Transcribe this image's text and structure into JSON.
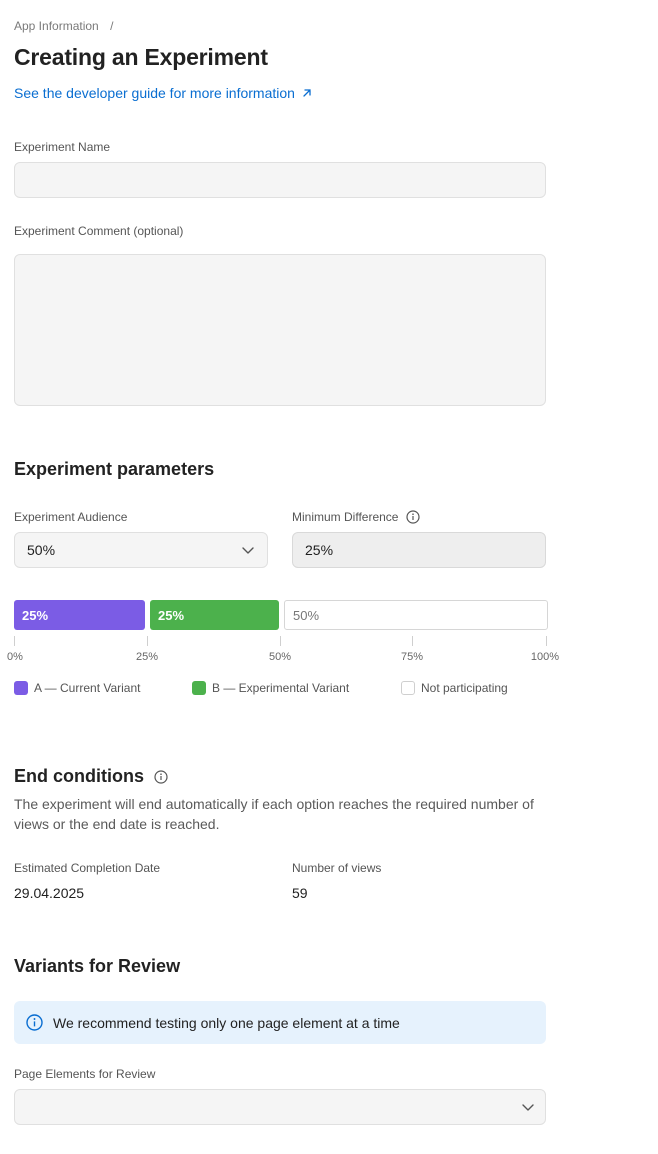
{
  "breadcrumb": {
    "item": "App Information",
    "separator": "/"
  },
  "page_title": "Creating an Experiment",
  "guide_link": {
    "label": "See the developer guide for more information"
  },
  "form": {
    "name_label": "Experiment Name",
    "name_value": "",
    "comment_label": "Experiment Comment (optional)",
    "comment_value": ""
  },
  "parameters": {
    "title": "Experiment parameters",
    "audience_label": "Experiment Audience",
    "audience_value": "50%",
    "min_diff_label": "Minimum Difference",
    "min_diff_value": "25%"
  },
  "distribution": {
    "segments": [
      {
        "label": "25%",
        "fraction": 0.25,
        "color": "#7b5ce5"
      },
      {
        "label": "25%",
        "fraction": 0.25,
        "color": "#4cb14c"
      },
      {
        "label": "50%",
        "fraction": 0.5,
        "color": "#ffffff"
      }
    ],
    "ticks": [
      "0%",
      "25%",
      "50%",
      "75%",
      "100%"
    ],
    "legend": [
      {
        "label": "A — Current Variant",
        "color": "#7b5ce5"
      },
      {
        "label": "B — Experimental Variant",
        "color": "#4cb14c"
      },
      {
        "label": "Not participating",
        "color": "#ffffff"
      }
    ]
  },
  "end_conditions": {
    "title": "End conditions",
    "description": "The experiment will end automatically if each option reaches the required number of views or the end date is reached.",
    "date_label": "Estimated Completion Date",
    "date_value": "29.04.2025",
    "views_label": "Number of views",
    "views_value": "59"
  },
  "variants": {
    "title": "Variants for Review",
    "notice": "We recommend testing only one page element at a time",
    "elements_label": "Page Elements for Review",
    "elements_value": ""
  },
  "colors": {
    "accent_link": "#0a6ed1",
    "variant_a": "#7b5ce5",
    "variant_b": "#4cb14c",
    "notice_bg": "#e6f2fd"
  }
}
